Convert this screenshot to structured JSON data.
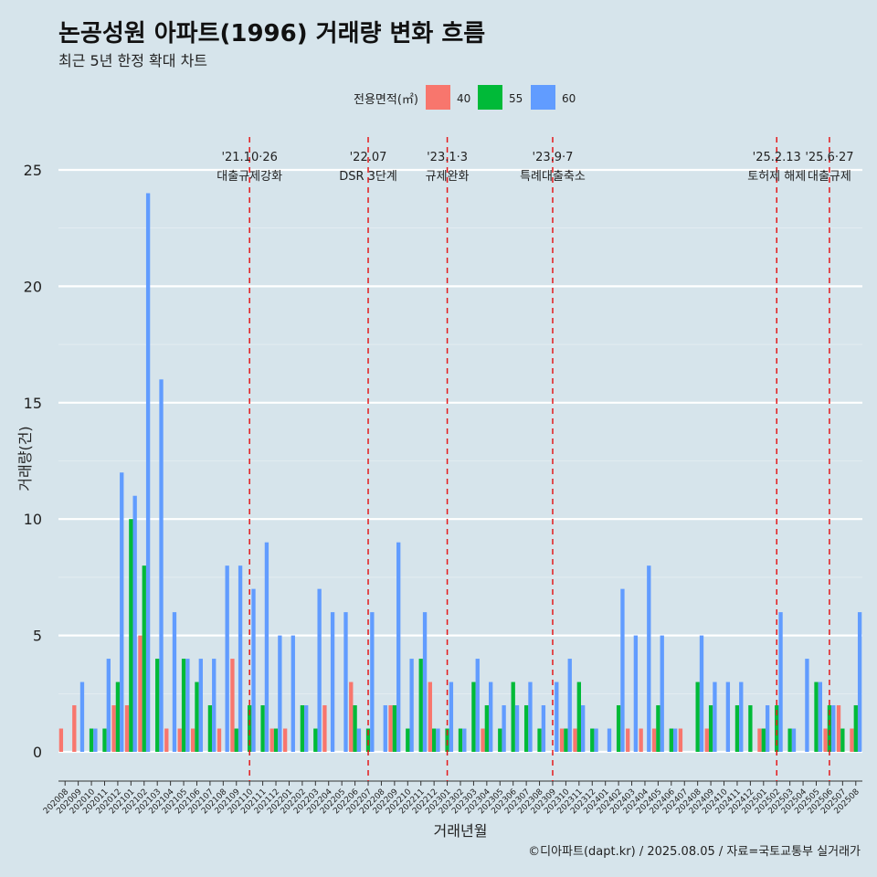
{
  "chart_data": {
    "type": "bar",
    "title": "논공성원 아파트(1996) 거래량 변화 흐름",
    "subtitle": "최근 5년 한정 확대 차트",
    "xlabel": "거래년월",
    "ylabel": "거래량(건)",
    "caption": "©디아파트(dapt.kr) / 2025.08.05 / 자료=국토교통부 실거래가",
    "legend_title": "전용면적(㎡)",
    "legend_position": "top-center",
    "ylim": [
      0,
      25
    ],
    "yticks": [
      0,
      5,
      10,
      15,
      20,
      25
    ],
    "grid": true,
    "categories": [
      "202008",
      "202009",
      "202010",
      "202011",
      "202012",
      "202101",
      "202102",
      "202103",
      "202104",
      "202105",
      "202106",
      "202107",
      "202108",
      "202109",
      "202110",
      "202111",
      "202112",
      "202201",
      "202202",
      "202203",
      "202204",
      "202205",
      "202206",
      "202207",
      "202208",
      "202209",
      "202210",
      "202211",
      "202212",
      "202301",
      "202302",
      "202303",
      "202304",
      "202305",
      "202306",
      "202307",
      "202308",
      "202309",
      "202310",
      "202311",
      "202312",
      "202401",
      "202402",
      "202403",
      "202404",
      "202405",
      "202406",
      "202407",
      "202408",
      "202409",
      "202410",
      "202411",
      "202412",
      "202501",
      "202502",
      "202503",
      "202504",
      "202505",
      "202506",
      "202507",
      "202508"
    ],
    "series": [
      {
        "name": "40",
        "color": "#f8766d",
        "values": [
          1,
          2,
          0,
          0,
          2,
          2,
          5,
          0,
          1,
          1,
          1,
          0,
          1,
          4,
          0,
          0,
          1,
          1,
          0,
          0,
          2,
          0,
          3,
          0,
          0,
          2,
          0,
          0,
          3,
          0,
          0,
          0,
          1,
          0,
          0,
          0,
          0,
          0,
          1,
          1,
          0,
          0,
          0,
          1,
          1,
          1,
          0,
          1,
          0,
          1,
          0,
          0,
          0,
          1,
          0,
          0,
          0,
          0,
          1,
          2,
          1
        ]
      },
      {
        "name": "55",
        "color": "#00ba38",
        "values": [
          0,
          0,
          1,
          1,
          3,
          10,
          8,
          4,
          0,
          4,
          3,
          2,
          0,
          1,
          2,
          2,
          1,
          0,
          2,
          1,
          0,
          0,
          2,
          1,
          0,
          2,
          1,
          4,
          1,
          1,
          1,
          3,
          2,
          1,
          3,
          2,
          1,
          0,
          1,
          3,
          1,
          0,
          2,
          0,
          0,
          2,
          1,
          0,
          3,
          2,
          0,
          2,
          2,
          1,
          2,
          1,
          0,
          3,
          2,
          1,
          2
        ]
      },
      {
        "name": "60",
        "color": "#619cff",
        "values": [
          0,
          3,
          1,
          4,
          12,
          11,
          24,
          16,
          6,
          4,
          4,
          4,
          8,
          8,
          7,
          9,
          5,
          5,
          2,
          7,
          6,
          6,
          1,
          6,
          2,
          9,
          4,
          6,
          1,
          3,
          1,
          4,
          3,
          2,
          2,
          3,
          2,
          3,
          4,
          2,
          1,
          1,
          7,
          5,
          8,
          5,
          1,
          0,
          5,
          3,
          3,
          3,
          0,
          2,
          6,
          1,
          4,
          3,
          2,
          0,
          6
        ]
      }
    ],
    "annotations": [
      {
        "category": "202110",
        "line1": "'21.10·26",
        "line2": "대출규제강화"
      },
      {
        "category": "202207",
        "line1": "'22.07",
        "line2": "DSR 3단계"
      },
      {
        "category": "202301",
        "line1": "'23.1·3",
        "line2": "규제완화"
      },
      {
        "category": "202309",
        "line1": "'23.9·7",
        "line2": "특례대출축소"
      },
      {
        "category": "202502",
        "line1": "'25.2.13",
        "line2": "토허제 해제"
      },
      {
        "category": "202506",
        "line1": "'25.6·27",
        "line2": "대출규제"
      }
    ]
  }
}
